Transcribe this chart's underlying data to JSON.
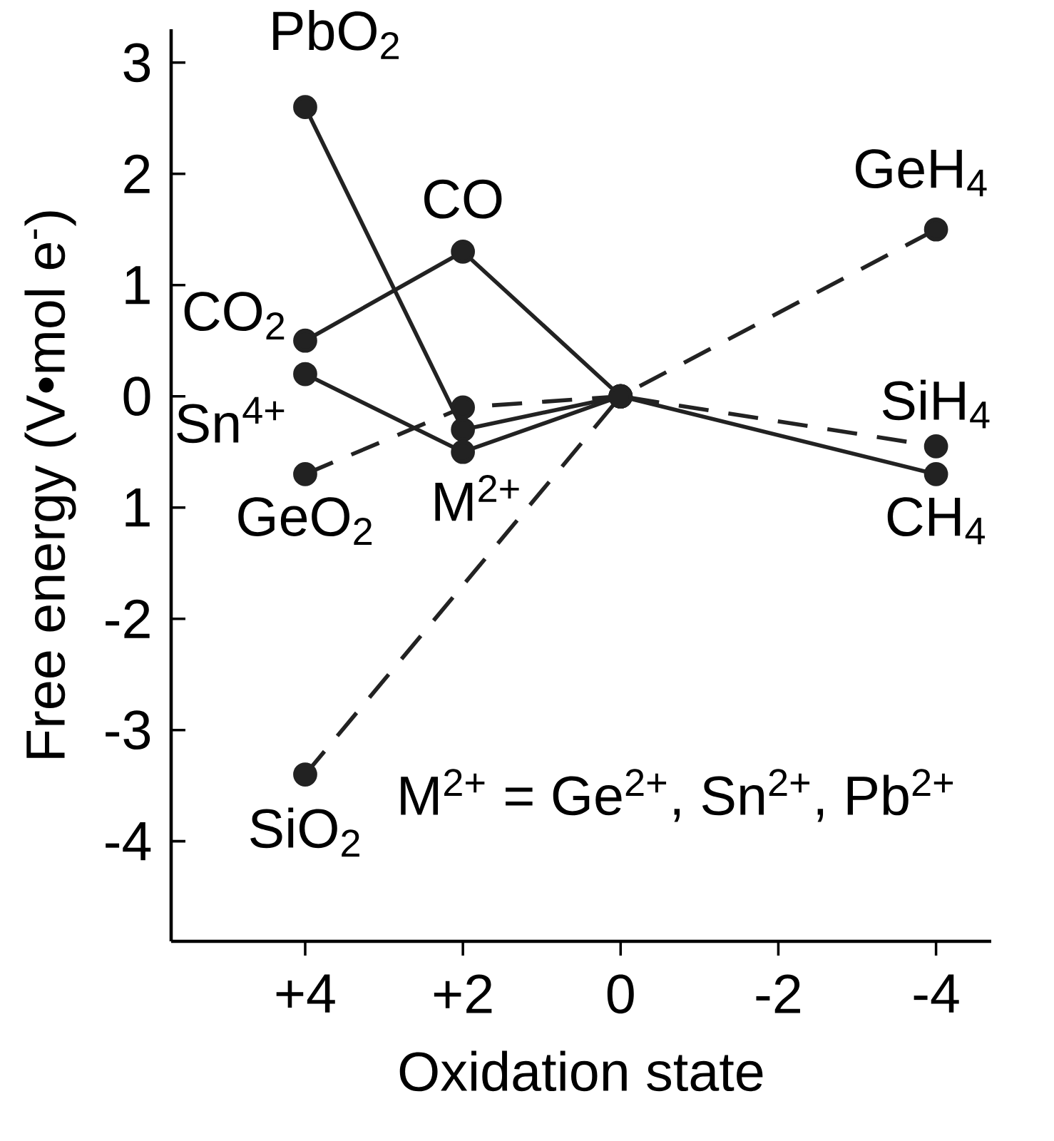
{
  "chart_data": {
    "type": "line",
    "xlabel": "Oxidation state",
    "ylabel": "Free energy (V•mol e$^{-}$)",
    "xlim": [
      5.7,
      -4.7
    ],
    "ylim": [
      -4.9,
      3.3
    ],
    "xticks": [
      {
        "value": 4,
        "label": "+4"
      },
      {
        "value": 2,
        "label": "+2"
      },
      0,
      -2,
      -4
    ],
    "yticks": [
      -4,
      -3,
      -2,
      {
        "value": -1,
        "label": "1"
      },
      0,
      1,
      2,
      3
    ],
    "marker": "circle",
    "grid": false,
    "series": [
      {
        "color": "#222222",
        "line_style": "solid",
        "x": [
          4,
          2,
          0
        ],
        "values": [
          2.6,
          -0.3,
          0
        ]
      },
      {
        "color": "#222222",
        "line_style": "solid",
        "x": [
          4,
          2,
          0
        ],
        "values": [
          0.2,
          -0.5,
          0
        ]
      },
      {
        "color": "#222222",
        "line_style": "solid",
        "x": [
          4,
          2,
          0,
          -4
        ],
        "values": [
          0.5,
          1.3,
          0,
          -0.7
        ]
      },
      {
        "color": "#222222",
        "line_style": "dashed",
        "x": [
          4,
          2,
          0,
          -4
        ],
        "values": [
          -0.7,
          -0.1,
          0,
          1.5
        ]
      },
      {
        "color": "#222222",
        "line_style": "dashed",
        "x": [
          4,
          0,
          -4
        ],
        "values": [
          -3.4,
          0,
          -0.45
        ]
      }
    ],
    "annotations": [
      {
        "text": "PbO$_{2}$",
        "x": 4,
        "y": 2.6
      },
      {
        "text": "CO$_{2}$",
        "x": 4,
        "y": 0.5
      },
      {
        "text": "Sn$^{4+}$",
        "x": 4,
        "y": 0.2
      },
      {
        "text": "GeO$_{2}$",
        "x": 4,
        "y": -0.7
      },
      {
        "text": "SiO$_{2}$",
        "x": 4,
        "y": -3.4
      },
      {
        "text": "CO",
        "x": 2,
        "y": 1.3
      },
      {
        "text": "M$^{2+}$",
        "x": 2,
        "y": -0.5
      },
      {
        "text": "GeH$_{4}$",
        "x": -4,
        "y": 1.5
      },
      {
        "text": "SiH$_{4}$",
        "x": -4,
        "y": -0.45
      },
      {
        "text": "CH$_{4}$",
        "x": -4,
        "y": -0.7
      },
      "M$^{2+}$ = Ge$^{2+}$, Sn$^{2+}$, Pb$^{2+}$"
    ]
  }
}
